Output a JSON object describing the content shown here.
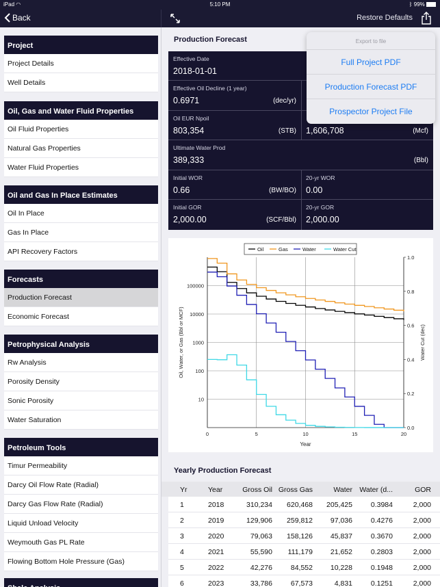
{
  "status_bar": {
    "carrier": "iPad",
    "time": "5:10 PM",
    "battery": "99%"
  },
  "navbar": {
    "back_label": "Back",
    "restore_label": "Restore Defaults"
  },
  "sidebar": {
    "sections": [
      {
        "header": "Project",
        "items": [
          "Project Details",
          "Well Details"
        ]
      },
      {
        "header": "Oil, Gas and Water Fluid Properties",
        "items": [
          "Oil Fluid Properties",
          "Natural Gas Properties",
          "Water Fluid Properties"
        ]
      },
      {
        "header": "Oil and Gas In Place Estimates",
        "items": [
          "Oil In Place",
          "Gas In Place",
          "API Recovery Factors"
        ]
      },
      {
        "header": "Forecasts",
        "items": [
          "Production Forecast",
          "Economic Forecast"
        ]
      },
      {
        "header": "Petrophysical Analysis",
        "items": [
          "Rw Analysis",
          "Porosity Density",
          "Sonic Porosity",
          "Water Saturation"
        ]
      },
      {
        "header": "Petroleum Tools",
        "items": [
          "Timur Permeability",
          "Darcy Oil Flow Rate (Radial)",
          "Darcy Gas Flow Rate (Radial)",
          "Liquid Unload Velocity",
          "Weymouth Gas PL Rate",
          "Flowing Bottom Hole Pressure (Gas)"
        ]
      },
      {
        "header": "Shale Analysis",
        "items": []
      }
    ],
    "selected_item": "Production Forecast"
  },
  "forecast": {
    "title": "Production Forecast",
    "effective_date": {
      "label": "Effective Date",
      "value": "2018-01-01"
    },
    "oil_decline": {
      "label": "Effective Oil Decline (1 year)",
      "value": "0.6971",
      "unit": "(dec/yr)"
    },
    "oil_eur": {
      "label": "Oil EUR Npoil",
      "value": "803,354",
      "unit": "(STB)"
    },
    "gas_eur": {
      "label": "",
      "value": "1,606,708",
      "unit": "(Mcf)"
    },
    "water_prod": {
      "label": "Ultimate Water Prod",
      "value": "389,333",
      "unit": "(Bbl)"
    },
    "initial_wor": {
      "label": "Initial WOR",
      "value": "0.66",
      "unit": "(BW/BO)"
    },
    "wor_20": {
      "label": "20-yr WOR",
      "value": "0.00"
    },
    "initial_gor": {
      "label": "Initial GOR",
      "value": "2,000.00",
      "unit": "(SCF/Bbl)"
    },
    "gor_20": {
      "label": "20-yr GOR",
      "value": "2,000.00"
    }
  },
  "chart_data": {
    "type": "line",
    "title": "",
    "xlabel": "Year",
    "ylabel": "Oil, Water, or Gas (Bbl or MCF)",
    "y2label": "Water Cut (dec)",
    "xlim": [
      0,
      20
    ],
    "ylim": [
      1,
      1000000
    ],
    "y2lim": [
      0.0,
      1.0
    ],
    "yscale": "log",
    "x_ticks": [
      "0",
      "5",
      "10",
      "15",
      "20"
    ],
    "y_ticks": [
      "10",
      "100",
      "1000",
      "10000",
      "100000"
    ],
    "y2_ticks": [
      "0.0",
      "0.2",
      "0.4",
      "0.6",
      "0.8",
      "1.0"
    ],
    "grid": true,
    "legend": "top",
    "series": [
      {
        "name": "Oil",
        "color": "#000000",
        "axis": "left",
        "step": true,
        "x": [
          0,
          1,
          2,
          3,
          4,
          5,
          6,
          7,
          8,
          9,
          10,
          11,
          12,
          13,
          14,
          15,
          16,
          17,
          18,
          19,
          20
        ],
        "values": [
          450000,
          310234,
          129906,
          79063,
          55590,
          42276,
          33786,
          27900,
          23600,
          20300,
          17700,
          15600,
          13900,
          12400,
          11200,
          10100,
          9200,
          8300,
          7500,
          6800,
          6200
        ]
      },
      {
        "name": "Gas",
        "color": "#f0961e",
        "axis": "left",
        "step": true,
        "x": [
          0,
          1,
          2,
          3,
          4,
          5,
          6,
          7,
          8,
          9,
          10,
          11,
          12,
          13,
          14,
          15,
          16,
          17,
          18,
          19,
          20
        ],
        "values": [
          900000,
          620468,
          259812,
          158126,
          111179,
          84552,
          67573,
          55800,
          47200,
          40600,
          35400,
          31200,
          27800,
          24800,
          22400,
          20200,
          18400,
          16600,
          15000,
          13600,
          12400
        ]
      },
      {
        "name": "Water",
        "color": "#1e1eb4",
        "axis": "left",
        "step": true,
        "x": [
          0,
          1,
          2,
          3,
          4,
          5,
          6,
          7,
          8,
          9,
          10,
          11,
          12,
          13,
          14,
          15,
          16,
          17,
          18,
          19,
          20
        ],
        "values": [
          300000,
          205425,
          97036,
          45837,
          21652,
          10228,
          4831,
          2280,
          1080,
          510,
          241,
          114,
          54,
          25,
          12,
          5.6,
          2.7,
          1.3,
          1,
          1,
          1
        ]
      },
      {
        "name": "Water Cut",
        "color": "#3ed8e6",
        "axis": "right",
        "step": true,
        "x": [
          0,
          1,
          2,
          3,
          4,
          5,
          6,
          7,
          8,
          9,
          10,
          11,
          12,
          13,
          14,
          15,
          16,
          17,
          18,
          19,
          20
        ],
        "values": [
          0.4,
          0.3984,
          0.4276,
          0.367,
          0.2803,
          0.1948,
          0.1251,
          0.0755,
          0.0437,
          0.0245,
          0.0134,
          0.0073,
          0.0039,
          0.002,
          0.0011,
          0.0006,
          0.0003,
          0.0002,
          0.0001,
          0.0,
          0.0
        ]
      }
    ]
  },
  "yearly": {
    "title": "Yearly Production Forecast",
    "columns": [
      "Yr",
      "Year",
      "Gross Oil",
      "Gross Gas",
      "Water",
      "Water (d...",
      "GOR"
    ],
    "rows": [
      [
        "1",
        "2018",
        "310,234",
        "620,468",
        "205,425",
        "0.3984",
        "2,000"
      ],
      [
        "2",
        "2019",
        "129,906",
        "259,812",
        "97,036",
        "0.4276",
        "2,000"
      ],
      [
        "3",
        "2020",
        "79,063",
        "158,126",
        "45,837",
        "0.3670",
        "2,000"
      ],
      [
        "4",
        "2021",
        "55,590",
        "111,179",
        "21,652",
        "0.2803",
        "2,000"
      ],
      [
        "5",
        "2022",
        "42,276",
        "84,552",
        "10,228",
        "0.1948",
        "2,000"
      ],
      [
        "6",
        "2023",
        "33,786",
        "67,573",
        "4,831",
        "0.1251",
        "2,000"
      ]
    ]
  },
  "export_menu": {
    "header": "Export to file",
    "items": [
      "Full Project PDF",
      "Production Forecast PDF",
      "Prospector Project File"
    ]
  }
}
